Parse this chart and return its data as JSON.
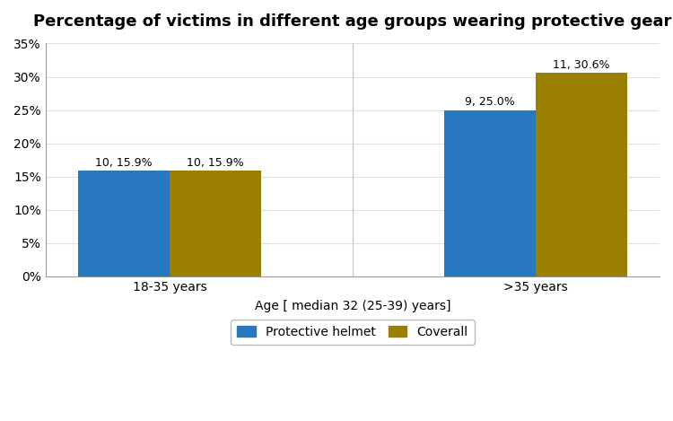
{
  "title": "Percentage of victims in different age groups wearing protective gear",
  "xlabel": "Age [ median 32 (25-39) years]",
  "ylabel": "",
  "categories": [
    "18-35 years",
    ">35 years"
  ],
  "series": [
    {
      "name": "Protective helmet",
      "color": "#2878C0",
      "values": [
        15.9,
        25.0
      ],
      "counts": [
        10,
        9
      ]
    },
    {
      "name": "Coverall",
      "color": "#9B8000",
      "values": [
        15.9,
        30.6
      ],
      "counts": [
        10,
        11
      ]
    }
  ],
  "ylim": [
    0,
    35
  ],
  "yticks": [
    0,
    5,
    10,
    15,
    20,
    25,
    30,
    35
  ],
  "ytick_labels": [
    "0%",
    "5%",
    "10%",
    "15%",
    "20%",
    "25%",
    "30%",
    "35%"
  ],
  "bar_width": 0.42,
  "title_fontsize": 13,
  "axis_label_fontsize": 10,
  "tick_fontsize": 10,
  "annotation_fontsize": 9,
  "legend_fontsize": 10,
  "background_color": "#ffffff",
  "divider_color": "#cccccc",
  "group_centers": [
    0.42,
    2.1
  ]
}
